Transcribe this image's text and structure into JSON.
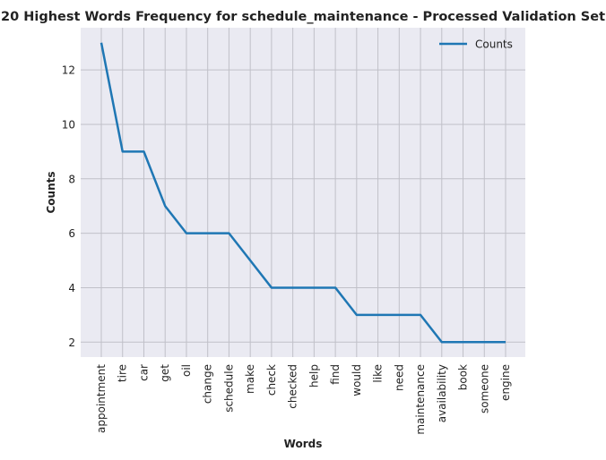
{
  "chart_data": {
    "type": "line",
    "title": "20 Highest Words Frequency for schedule_maintenance - Processed Validation Set",
    "xlabel": "Words",
    "ylabel": "Counts",
    "categories": [
      "appointment",
      "tire",
      "car",
      "get",
      "oil",
      "change",
      "schedule",
      "make",
      "check",
      "checked",
      "help",
      "find",
      "would",
      "like",
      "need",
      "maintenance",
      "availability",
      "book",
      "someone",
      "engine"
    ],
    "series": [
      {
        "name": "Counts",
        "values": [
          13,
          9,
          9,
          7,
          6,
          6,
          6,
          5,
          4,
          4,
          4,
          4,
          3,
          3,
          3,
          3,
          2,
          2,
          2,
          2
        ]
      }
    ],
    "yticks": [
      2,
      4,
      6,
      8,
      10,
      12
    ],
    "ylim": [
      1.45,
      13.55
    ],
    "grid": true,
    "legend_position": "top-right",
    "colors": {
      "line": "#1f77b4",
      "background": "#eaeaf2",
      "grid": "#c0c0c8"
    }
  }
}
